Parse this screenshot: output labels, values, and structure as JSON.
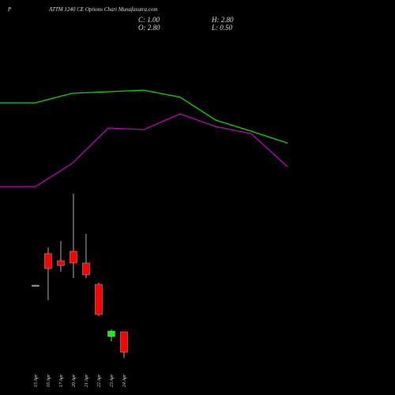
{
  "chart_data": {
    "type": "candlestick",
    "prefix": "P",
    "title": "ATTM 1240 CE Options Chart Munafasutra.com",
    "close_label": "C: 1.00",
    "high_label": "H: 2.80",
    "open_label": "O: 2.80",
    "low_label": "L: 0.50",
    "categories": [
      "15 Apr",
      "16 Apr",
      "17 Apr",
      "20 Apr",
      "21 Apr",
      "22 Apr",
      "23 Apr",
      "24 Apr"
    ],
    "open": [
      6.89,
      9.66,
      9.03,
      9.86,
      8.83,
      6.96,
      2.38,
      2.8
    ],
    "high": [
      6.89,
      10.21,
      10.76,
      14.92,
      11.39,
      7.1,
      3.01,
      2.8
    ],
    "low": [
      6.89,
      5.57,
      8.06,
      7.51,
      7.51,
      4.19,
      1.97,
      0.5
    ],
    "close": [
      6.89,
      8.34,
      8.61,
      8.83,
      7.79,
      4.32,
      2.87,
      1.0
    ],
    "up_color": "#00ff00",
    "down_color": "#ff0000",
    "xlim": [
      -2.81,
      28.44
    ],
    "ylim": [
      -2.74,
      31.89
    ],
    "lines": [
      {
        "color": "#00dd00",
        "x": [
          -2.81,
          0,
          2.88,
          8.56,
          11.44,
          14.25,
          17.06,
          19.94
        ],
        "values": [
          22.88,
          22.88,
          23.71,
          23.99,
          23.37,
          21.36,
          20.39,
          19.35
        ]
      },
      {
        "color": "#bb00bb",
        "x": [
          -2.81,
          0,
          2.88,
          5.75,
          8.56,
          11.44,
          14.25,
          17.06,
          19.94
        ],
        "values": [
          15.54,
          15.54,
          17.55,
          20.67,
          20.53,
          21.91,
          20.8,
          20.18,
          17.27
        ]
      }
    ]
  }
}
